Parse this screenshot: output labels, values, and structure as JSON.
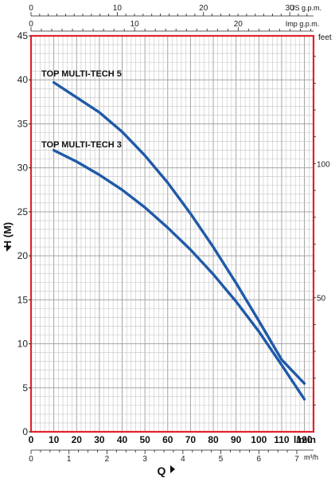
{
  "chart_data": {
    "type": "line",
    "ylabel": "H (M)",
    "xlabel": "Q",
    "y_unit_right": "feet",
    "x_unit_main": "l/min",
    "x_unit_m3h": "m³/h",
    "x_unit_us": "US g.p.m.",
    "x_unit_imp": "Imp g.p.m.",
    "xlim": [
      0,
      124
    ],
    "ylim": [
      0,
      45
    ],
    "grid": true,
    "y_ticks": [
      0,
      5,
      10,
      15,
      20,
      25,
      30,
      35,
      40,
      45
    ],
    "x_ticks_lmin": [
      "0",
      "10",
      "20",
      "30",
      "40",
      "50",
      "60",
      "70",
      "80",
      "90",
      "100",
      "110",
      "120"
    ],
    "x_ticks_m3h": [
      "0",
      "1",
      "2",
      "3",
      "4",
      "5",
      "6",
      "7"
    ],
    "x_ticks_us": [
      "0",
      "10",
      "20",
      "30"
    ],
    "x_ticks_imp": [
      "0",
      "10",
      "20"
    ],
    "y_ticks_feet": [
      "50",
      "100"
    ],
    "series": [
      {
        "name": "TOP MULTI-TECH 5",
        "color": "#1f5aa8",
        "x": [
          10,
          20,
          30,
          40,
          50,
          60,
          70,
          80,
          90,
          100,
          110,
          120
        ],
        "y": [
          39.7,
          38.0,
          36.3,
          34.1,
          31.4,
          28.3,
          24.8,
          21.0,
          16.9,
          12.6,
          8.2,
          5.5
        ]
      },
      {
        "name": "TOP MULTI-TECH  3",
        "color": "#1f5aa8",
        "x": [
          10,
          20,
          30,
          40,
          50,
          60,
          70,
          80,
          90,
          100,
          110,
          120
        ],
        "y": [
          32.0,
          30.7,
          29.2,
          27.5,
          25.5,
          23.2,
          20.7,
          17.9,
          14.8,
          11.4,
          7.6,
          3.7
        ]
      }
    ]
  }
}
